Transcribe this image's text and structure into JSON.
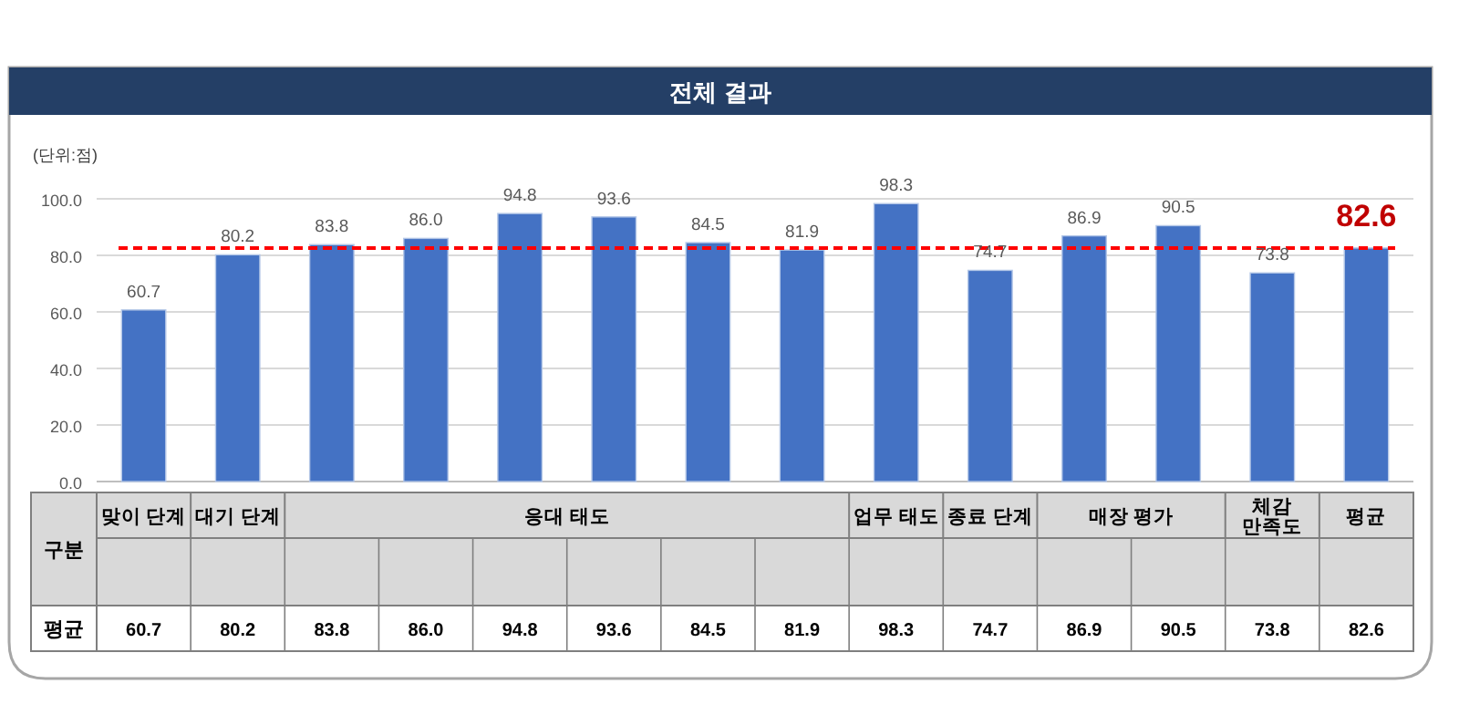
{
  "chart_data": {
    "type": "bar",
    "title": "전체 결과",
    "categories": [
      null,
      null,
      null,
      null,
      null,
      null,
      null,
      null,
      null,
      null,
      null,
      null,
      null,
      null
    ],
    "value_labels": [
      "60.7",
      "80.2",
      "83.8",
      "86.0",
      "94.8",
      "93.6",
      "84.5",
      "81.9",
      "98.3",
      "74.7",
      "86.9",
      "90.5",
      "73.8",
      "82.6"
    ],
    "values": [
      60.7,
      80.2,
      83.8,
      86.0,
      94.8,
      93.6,
      84.5,
      81.9,
      98.3,
      74.7,
      86.9,
      90.5,
      73.8,
      82.6
    ],
    "color": "#4472c4",
    "ylim": [
      0,
      100
    ],
    "yticks": [
      {
        "value": 0,
        "label": "0.0"
      },
      {
        "value": 20,
        "label": "20.0"
      },
      {
        "value": 40,
        "label": "40.0"
      },
      {
        "value": 60,
        "label": "60.0"
      },
      {
        "value": 80,
        "label": "80.0"
      },
      {
        "value": 100,
        "label": "100.0"
      }
    ],
    "grid": "y",
    "ref_lines": [
      {
        "axis": "y",
        "value": 82.6,
        "color": "#ff0000",
        "line_style": "dashed"
      }
    ],
    "annotations": [
      "(단위:점)",
      "구분",
      "맞이 단계",
      "대기 단계",
      "응대 태도",
      "업무 태도",
      "종료 단계",
      "매장 평가",
      "체감 만족도",
      "평균",
      "평균"
    ]
  }
}
